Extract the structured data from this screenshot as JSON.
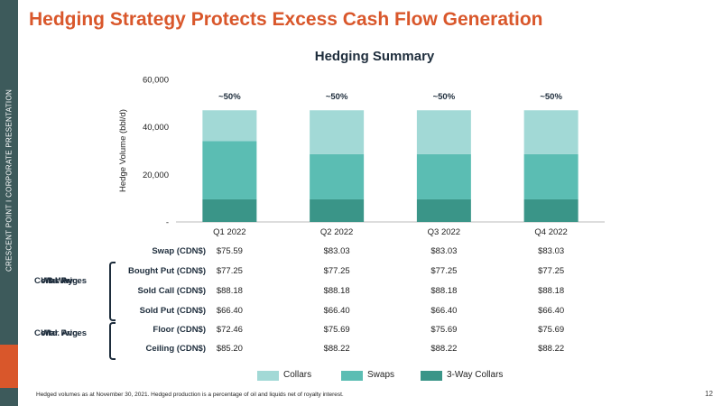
{
  "sidebar": {
    "text": "CRESCENT POINT   I   CORPORATE PRESENTATION"
  },
  "title": "Hedging Strategy Protects Excess Cash Flow Generation",
  "colors": {
    "collars": "#a2d9d6",
    "swaps": "#5bbdb3",
    "three_way": "#3a9588",
    "title": "#d9572b",
    "sidebar": "#3d5a5b"
  },
  "chart_data": {
    "type": "bar",
    "stacked": true,
    "title": "Hedging Summary",
    "ylabel": "Hedge Volume (bbl/d)",
    "xlabel": "",
    "ylim": [
      0,
      60000
    ],
    "yticks": [
      0,
      20000,
      40000,
      60000
    ],
    "ytick_labels": [
      "-",
      "20,000",
      "40,000",
      "60,000"
    ],
    "categories": [
      "Q1 2022",
      "Q2 2022",
      "Q3 2022",
      "Q4 2022"
    ],
    "series": [
      {
        "name": "3-Way Collars",
        "values": [
          9500,
          9500,
          9500,
          9500
        ]
      },
      {
        "name": "Swaps",
        "values": [
          24500,
          19000,
          19000,
          19000
        ]
      },
      {
        "name": "Collars",
        "values": [
          13000,
          18500,
          18500,
          18500
        ]
      }
    ],
    "annotations": [
      "~50%",
      "~50%",
      "~50%",
      "~50%"
    ],
    "legend": {
      "position": "bottom",
      "entries": [
        "Collars",
        "Swaps",
        "3-Way Collars"
      ]
    },
    "grid": false
  },
  "table": {
    "rows": [
      {
        "label": "Swap (CDN$)",
        "values": [
          "$75.59",
          "$83.03",
          "$83.03",
          "$83.03"
        ]
      },
      {
        "label": "Bought Put (CDN$)",
        "values": [
          "$77.25",
          "$77.25",
          "$77.25",
          "$77.25"
        ]
      },
      {
        "label": "Sold Call (CDN$)",
        "values": [
          "$88.18",
          "$88.18",
          "$88.18",
          "$88.18"
        ]
      },
      {
        "label": "Sold Put (CDN$)",
        "values": [
          "$66.40",
          "$66.40",
          "$66.40",
          "$66.40"
        ]
      },
      {
        "label": "Floor (CDN$)",
        "values": [
          "$72.46",
          "$75.69",
          "$75.69",
          "$75.69"
        ]
      },
      {
        "label": "Ceiling (CDN$)",
        "values": [
          "$85.20",
          "$88.22",
          "$88.22",
          "$88.22"
        ]
      }
    ],
    "groups": [
      {
        "lines": [
          "Wtd. Avg.",
          "3-Way",
          "Collar Prices"
        ]
      },
      {
        "lines": [
          "Wtd. Avg.",
          "Collar Prices"
        ]
      }
    ]
  },
  "footnote": "Hedged volumes as at November 30, 2021. Hedged production is a percentage of oil and liquids net of royalty interest.",
  "page_number": "12"
}
